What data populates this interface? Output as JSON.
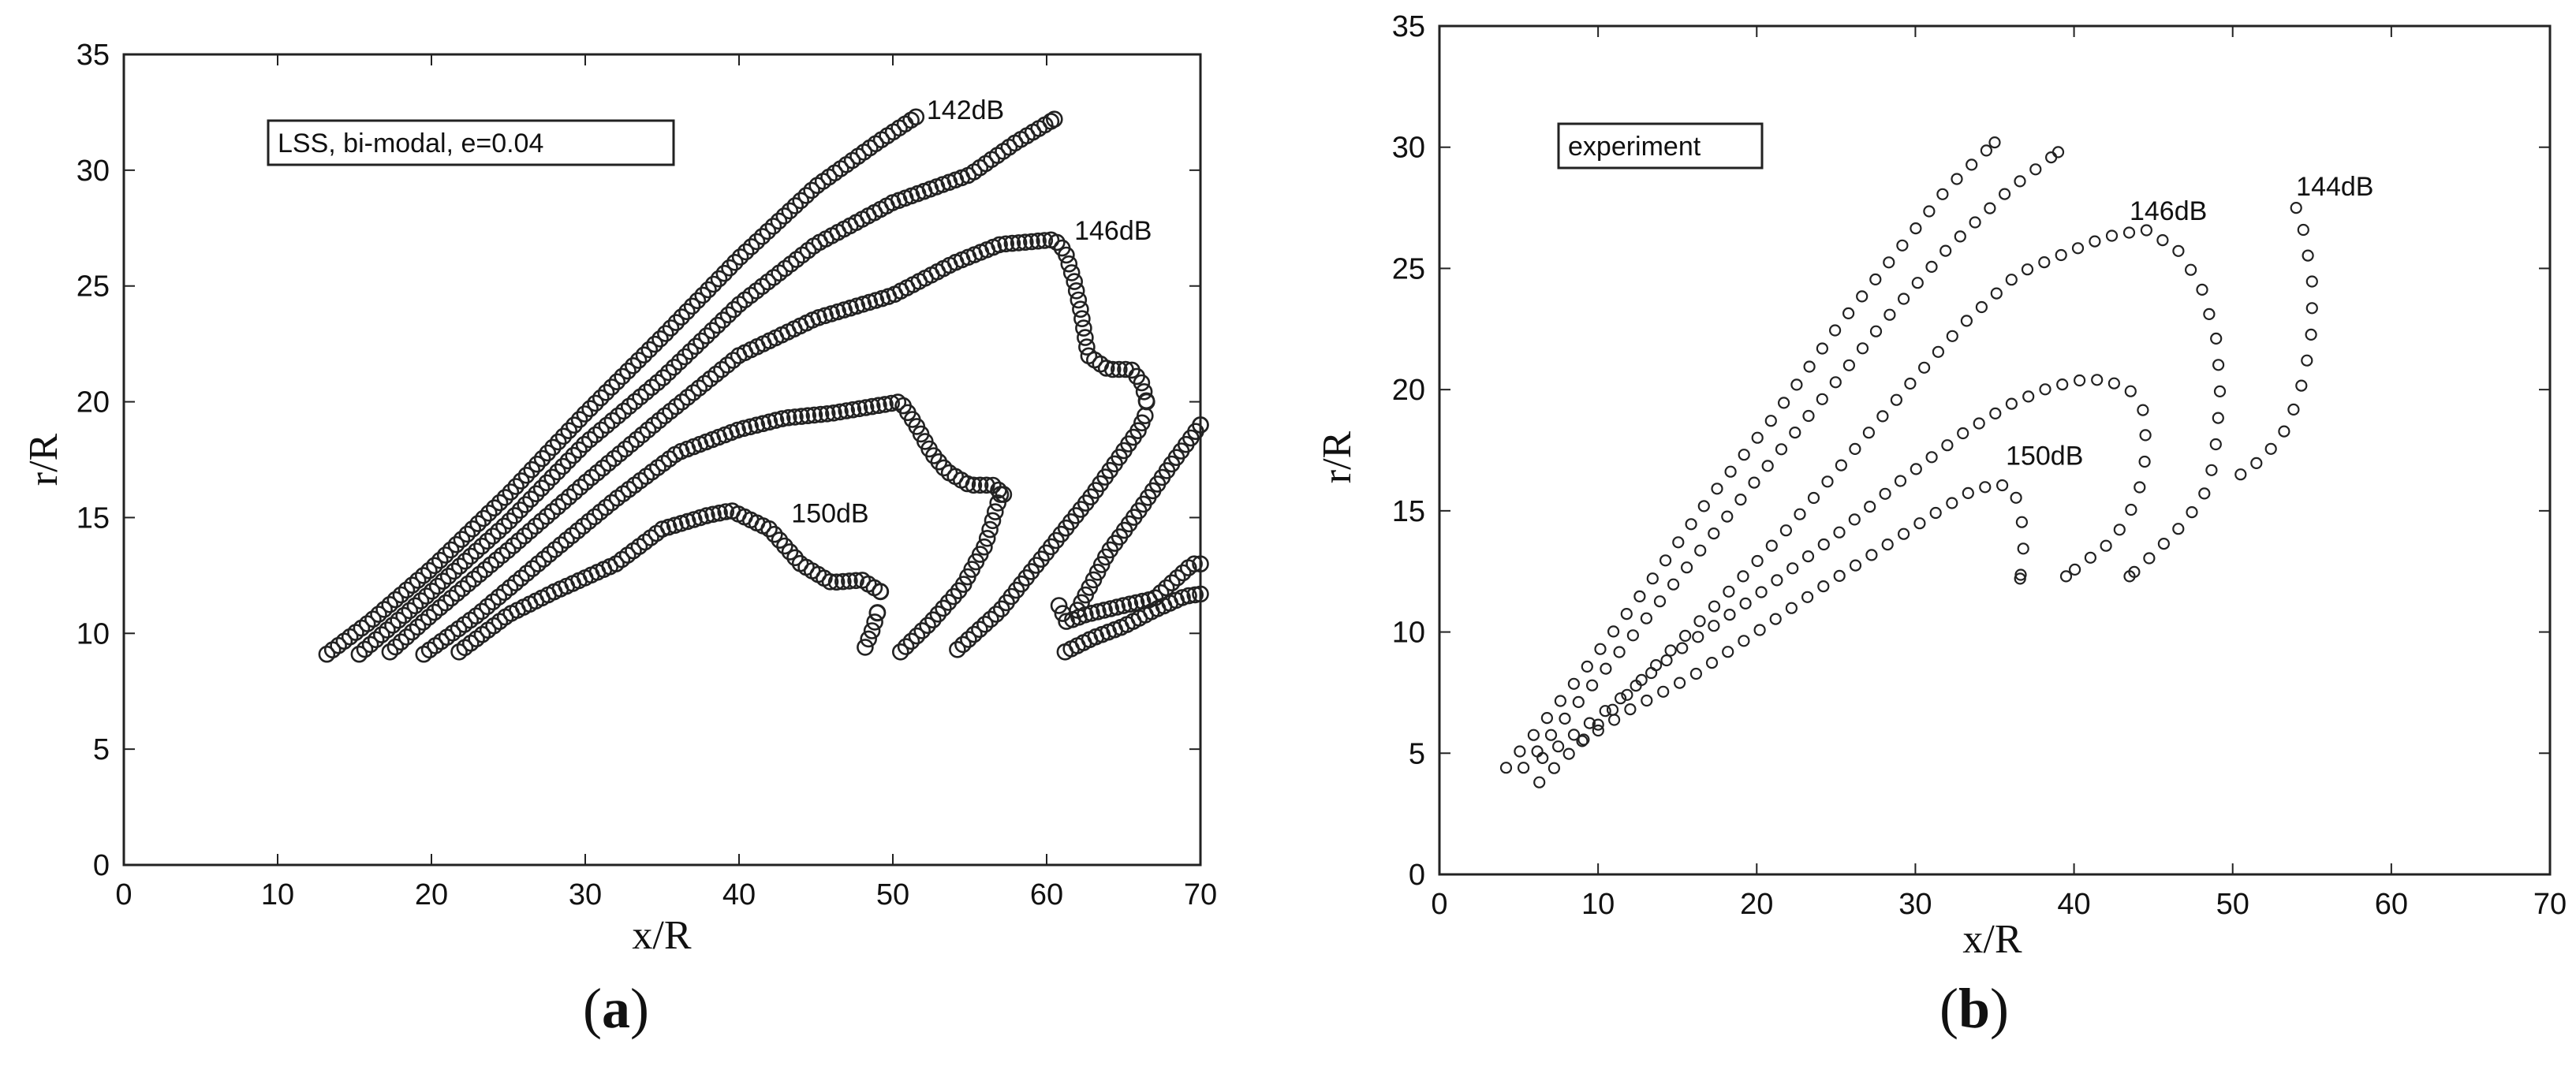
{
  "chart_data": [
    {
      "type": "scatter",
      "panel_label_text": "a",
      "xlabel": "x/R",
      "ylabel": "r/R",
      "xlim": [
        0,
        70
      ],
      "ylim": [
        0,
        35
      ],
      "xticks": [
        "0",
        "10",
        "20",
        "30",
        "40",
        "50",
        "60",
        "70"
      ],
      "yticks": [
        "0",
        "5",
        "10",
        "15",
        "20",
        "25",
        "30",
        "35"
      ],
      "legend": "LSS, bi-modal, e=0.04",
      "legend_position": "top-left",
      "annotations": [
        {
          "text": "142dB",
          "x": 52.2,
          "y": 32.2
        },
        {
          "text": "146dB",
          "x": 61.8,
          "y": 27.0
        },
        {
          "text": "150dB",
          "x": 43.4,
          "y": 14.8
        }
      ],
      "series": [
        {
          "points": [
            [
              13.2,
              9.1
            ],
            [
              16,
              10.5
            ],
            [
              20,
              12.8
            ],
            [
              25,
              16
            ],
            [
              30,
              19.5
            ],
            [
              35,
              22.8
            ],
            [
              40,
              26.2
            ],
            [
              45,
              29.3
            ],
            [
              49,
              31.2
            ],
            [
              51.5,
              32.3
            ]
          ]
        },
        {
          "points": [
            [
              15.3,
              9.1
            ],
            [
              20,
              11.8
            ],
            [
              25,
              14.8
            ],
            [
              30,
              18.2
            ],
            [
              35,
              21
            ],
            [
              40,
              24.2
            ],
            [
              45,
              26.8
            ],
            [
              50,
              28.6
            ],
            [
              55,
              29.8
            ],
            [
              58,
              31.2
            ],
            [
              60.5,
              32.2
            ]
          ]
        },
        {
          "points": [
            [
              17.3,
              9.2
            ],
            [
              20,
              10.8
            ],
            [
              25,
              13.6
            ],
            [
              30,
              16.5
            ],
            [
              35,
              19.3
            ],
            [
              40,
              22
            ],
            [
              45,
              23.6
            ],
            [
              50,
              24.6
            ],
            [
              54,
              26
            ],
            [
              57,
              26.8
            ],
            [
              60.5,
              27
            ],
            [
              61.2,
              26.5
            ],
            [
              61.8,
              25.2
            ],
            [
              62.2,
              24
            ],
            [
              62.7,
              22
            ],
            [
              64,
              21.4
            ],
            [
              65.5,
              21.4
            ],
            [
              66.2,
              20.8
            ],
            [
              66.5,
              20
            ]
          ]
        },
        {
          "points": [
            [
              19.5,
              9.1
            ],
            [
              23,
              10.8
            ],
            [
              28,
              13.6
            ],
            [
              32,
              15.8
            ],
            [
              36,
              17.8
            ],
            [
              40,
              18.8
            ],
            [
              43,
              19.3
            ],
            [
              46,
              19.5
            ],
            [
              50.5,
              20
            ],
            [
              51.5,
              19
            ],
            [
              52.5,
              17.8
            ],
            [
              53.5,
              17
            ],
            [
              55,
              16.4
            ],
            [
              56.5,
              16.4
            ],
            [
              57.2,
              16
            ]
          ]
        },
        {
          "points": [
            [
              21.8,
              9.2
            ],
            [
              25,
              10.8
            ],
            [
              28,
              11.8
            ],
            [
              32,
              13
            ],
            [
              35,
              14.5
            ],
            [
              38,
              15.1
            ],
            [
              39.5,
              15.3
            ],
            [
              42,
              14.5
            ],
            [
              44,
              13
            ],
            [
              46,
              12.2
            ],
            [
              48,
              12.3
            ],
            [
              49.2,
              11.8
            ]
          ]
        },
        {
          "points": [
            [
              48.2,
              9.4
            ],
            [
              48.7,
              10.2
            ],
            [
              49,
              10.9
            ]
          ]
        },
        {
          "points": [
            [
              50.5,
              9.2
            ],
            [
              52.5,
              10.5
            ],
            [
              54.5,
              12
            ],
            [
              56,
              13.8
            ],
            [
              57,
              16
            ]
          ]
        },
        {
          "points": [
            [
              54.2,
              9.3
            ],
            [
              57,
              11
            ],
            [
              60,
              13.5
            ],
            [
              63,
              16
            ],
            [
              66,
              18.8
            ],
            [
              66.4,
              19.4
            ]
          ]
        },
        {
          "points": [
            [
              60.8,
              11.2
            ],
            [
              61.3,
              10.5
            ],
            [
              62.5,
              10.8
            ],
            [
              65,
              11.2
            ],
            [
              67,
              11.5
            ],
            [
              69.5,
              13
            ],
            [
              70,
              13
            ]
          ]
        },
        {
          "points": [
            [
              62,
              11
            ],
            [
              64,
              13.5
            ],
            [
              66,
              15.3
            ],
            [
              68,
              17.2
            ],
            [
              70,
              19
            ]
          ]
        },
        {
          "points": [
            [
              61.2,
              9.2
            ],
            [
              63,
              9.8
            ],
            [
              65,
              10.3
            ],
            [
              67,
              11
            ],
            [
              69,
              11.6
            ],
            [
              70,
              11.7
            ]
          ]
        }
      ]
    },
    {
      "type": "scatter",
      "panel_label_text": "b",
      "xlabel": "x/R",
      "ylabel": "r/R",
      "xlim": [
        0,
        70
      ],
      "ylim": [
        0,
        35
      ],
      "xticks": [
        "0",
        "10",
        "20",
        "30",
        "40",
        "50",
        "60",
        "70"
      ],
      "yticks": [
        "0",
        "5",
        "10",
        "15",
        "20",
        "25",
        "30",
        "35"
      ],
      "legend": "experiment",
      "legend_position": "top-left",
      "annotations": [
        {
          "text": "146dB",
          "x": 43.5,
          "y": 27.0
        },
        {
          "text": "144dB",
          "x": 54.0,
          "y": 28.0
        },
        {
          "text": "150dB",
          "x": 35.7,
          "y": 16.9
        }
      ],
      "series": [
        {
          "step": 1.1,
          "points": [
            [
              4.2,
              4.4
            ],
            [
              6,
              5.8
            ],
            [
              9,
              8.3
            ],
            [
              13,
              11.8
            ],
            [
              17,
              15.5
            ],
            [
              21,
              18.8
            ],
            [
              25,
              22.5
            ],
            [
              29,
              25.8
            ],
            [
              32,
              28.3
            ],
            [
              35,
              30.2
            ]
          ]
        },
        {
          "step": 1.1,
          "points": [
            [
              5.3,
              4.4
            ],
            [
              8,
              6.5
            ],
            [
              12,
              9.7
            ],
            [
              16,
              13
            ],
            [
              20,
              16.3
            ],
            [
              24,
              19.5
            ],
            [
              28,
              22.8
            ],
            [
              32,
              25.8
            ],
            [
              36,
              28.3
            ],
            [
              39,
              29.8
            ]
          ]
        },
        {
          "step": 1.1,
          "points": [
            [
              6.3,
              3.8
            ],
            [
              9,
              5.5
            ],
            [
              13,
              8.2
            ],
            [
              18,
              11.5
            ],
            [
              22,
              14.3
            ],
            [
              26,
              17.4
            ],
            [
              30,
              20.5
            ],
            [
              33,
              22.7
            ],
            [
              36.5,
              24.8
            ],
            [
              39,
              25.5
            ],
            [
              42,
              26.3
            ],
            [
              44.5,
              26.6
            ],
            [
              46.5,
              25.8
            ],
            [
              48,
              24.3
            ],
            [
              49,
              22
            ],
            [
              49.2,
              20
            ],
            [
              49,
              18
            ],
            [
              48.5,
              16
            ],
            [
              47.5,
              15
            ],
            [
              46.5,
              14.2
            ],
            [
              45,
              13.2
            ],
            [
              43.5,
              12.3
            ]
          ]
        },
        {
          "step": 1.1,
          "points": [
            [
              6.5,
              4.8
            ],
            [
              10,
              6.5
            ],
            [
              15,
              9.2
            ],
            [
              20,
              11.5
            ],
            [
              25,
              14
            ],
            [
              29,
              16.2
            ],
            [
              33,
              18.2
            ],
            [
              36,
              19.4
            ],
            [
              38.5,
              20.1
            ],
            [
              40.5,
              20.4
            ],
            [
              42,
              20.4
            ],
            [
              43.5,
              20
            ],
            [
              44.5,
              19
            ],
            [
              44.5,
              17.2
            ],
            [
              44,
              15.5
            ],
            [
              42.5,
              13.8
            ],
            [
              40.5,
              12.8
            ],
            [
              39.5,
              12.3
            ]
          ]
        },
        {
          "step": 1.1,
          "points": [
            [
              9,
              5.5
            ],
            [
              12,
              6.8
            ],
            [
              16,
              8.2
            ],
            [
              20,
              10
            ],
            [
              24,
              11.8
            ],
            [
              28,
              13.5
            ],
            [
              31,
              14.8
            ],
            [
              33.5,
              15.8
            ],
            [
              35,
              16.1
            ],
            [
              36,
              16
            ],
            [
              36.6,
              15.2
            ],
            [
              36.8,
              14
            ],
            [
              36.8,
              13
            ],
            [
              36.6,
              12.2
            ]
          ]
        },
        {
          "step": 1.1,
          "points": [
            [
              50.5,
              16.5
            ],
            [
              52,
              17.2
            ],
            [
              53.5,
              18.5
            ],
            [
              54.5,
              20.5
            ],
            [
              55,
              22.5
            ],
            [
              55,
              24.5
            ],
            [
              54.5,
              26.5
            ],
            [
              54,
              27.5
            ]
          ]
        }
      ]
    }
  ]
}
